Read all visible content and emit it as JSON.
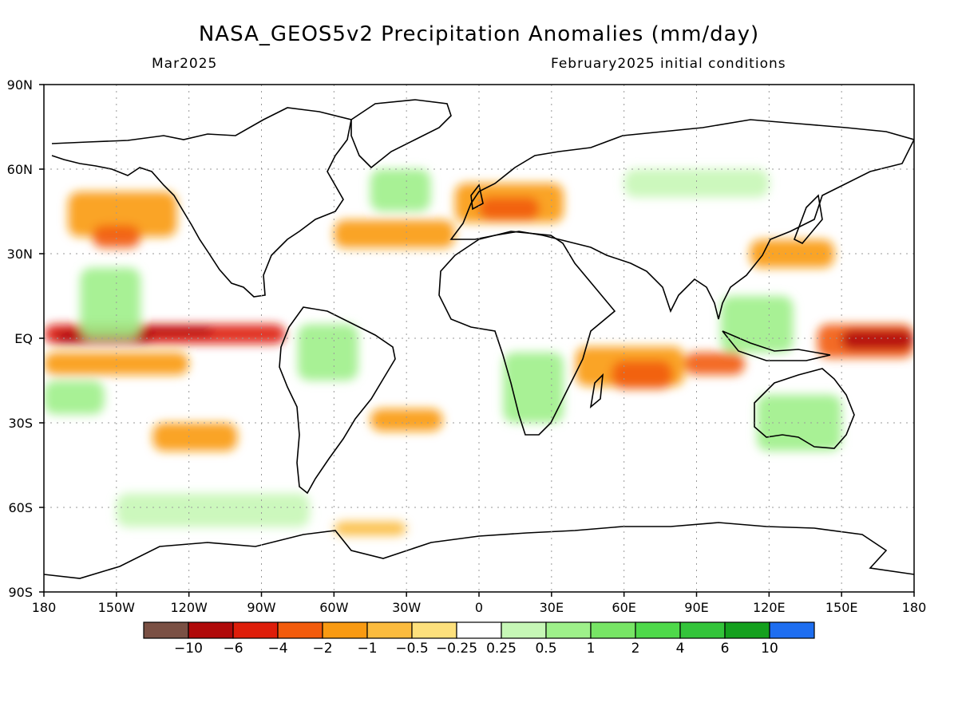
{
  "title": "NASA_GEOS5v2 Precipitation Anomalies (mm/day)",
  "subtitle_left": "Mar2025",
  "subtitle_right": "February2025 initial conditions",
  "map": {
    "lon_range": [
      -180,
      180
    ],
    "lat_range": [
      -90,
      90
    ],
    "x_ticks": [
      {
        "v": -180,
        "label": "180"
      },
      {
        "v": -150,
        "label": "150W"
      },
      {
        "v": -120,
        "label": "120W"
      },
      {
        "v": -90,
        "label": "90W"
      },
      {
        "v": -60,
        "label": "60W"
      },
      {
        "v": -30,
        "label": "30W"
      },
      {
        "v": 0,
        "label": "0"
      },
      {
        "v": 30,
        "label": "30E"
      },
      {
        "v": 60,
        "label": "60E"
      },
      {
        "v": 90,
        "label": "90E"
      },
      {
        "v": 120,
        "label": "120E"
      },
      {
        "v": 150,
        "label": "150E"
      },
      {
        "v": 180,
        "label": "180"
      }
    ],
    "y_ticks": [
      {
        "v": 90,
        "label": "90N"
      },
      {
        "v": 60,
        "label": "60N"
      },
      {
        "v": 30,
        "label": "30N"
      },
      {
        "v": 0,
        "label": "EQ"
      },
      {
        "v": -30,
        "label": "30S"
      },
      {
        "v": -60,
        "label": "60S"
      },
      {
        "v": -90,
        "label": "90S"
      }
    ],
    "gridlines": "dotted"
  },
  "colorbar": {
    "colors": [
      "#7a5044",
      "#b00a0a",
      "#de1e0a",
      "#f25b0c",
      "#f99a12",
      "#fbbb3e",
      "#fde07c",
      "#ffffff",
      "#c6f7b6",
      "#9ef08a",
      "#77e565",
      "#4ed94a",
      "#33c43a",
      "#14a01e",
      "#1e6ef0"
    ],
    "labels": [
      "-10",
      "-6",
      "-4",
      "-2",
      "-1",
      "-0.5",
      "-0.25",
      "0.25",
      "0.5",
      "1",
      "2",
      "4",
      "6",
      "10"
    ]
  },
  "anomaly_regions": [
    {
      "lon": -180,
      "lat": 5,
      "w": 100,
      "h": 7,
      "level": -4
    },
    {
      "lon": -175,
      "lat": 3,
      "w": 40,
      "h": 5,
      "level": -6
    },
    {
      "lon": -140,
      "lat": 4,
      "w": 30,
      "h": 3,
      "level": -6
    },
    {
      "lon": -180,
      "lat": -5,
      "w": 60,
      "h": 8,
      "level": -1
    },
    {
      "lon": -170,
      "lat": 52,
      "w": 45,
      "h": 16,
      "level": -1
    },
    {
      "lon": -160,
      "lat": 40,
      "w": 20,
      "h": 8,
      "level": -2
    },
    {
      "lon": -165,
      "lat": 25,
      "w": 25,
      "h": 25,
      "level": 1
    },
    {
      "lon": -180,
      "lat": -15,
      "w": 25,
      "h": 12,
      "level": 1
    },
    {
      "lon": -135,
      "lat": -30,
      "w": 35,
      "h": 10,
      "level": -1
    },
    {
      "lon": -60,
      "lat": 42,
      "w": 50,
      "h": 10,
      "level": -1
    },
    {
      "lon": -45,
      "lat": 60,
      "w": 25,
      "h": 15,
      "level": 1
    },
    {
      "lon": -10,
      "lat": 55,
      "w": 45,
      "h": 14,
      "level": -1
    },
    {
      "lon": 0,
      "lat": 50,
      "w": 25,
      "h": 8,
      "level": -2
    },
    {
      "lon": 40,
      "lat": -3,
      "w": 45,
      "h": 14,
      "level": -1
    },
    {
      "lon": 55,
      "lat": -8,
      "w": 25,
      "h": 10,
      "level": -2
    },
    {
      "lon": 85,
      "lat": -5,
      "w": 25,
      "h": 8,
      "level": -2
    },
    {
      "lon": 140,
      "lat": 5,
      "w": 40,
      "h": 12,
      "level": -2
    },
    {
      "lon": 150,
      "lat": 3,
      "w": 30,
      "h": 7,
      "level": -6
    },
    {
      "lon": 100,
      "lat": 15,
      "w": 30,
      "h": 20,
      "level": 1
    },
    {
      "lon": 112,
      "lat": 35,
      "w": 35,
      "h": 10,
      "level": -1
    },
    {
      "lon": 115,
      "lat": -20,
      "w": 35,
      "h": 20,
      "level": 1
    },
    {
      "lon": 10,
      "lat": -5,
      "w": 25,
      "h": 25,
      "level": 1
    },
    {
      "lon": -75,
      "lat": 5,
      "w": 25,
      "h": 20,
      "level": 1
    },
    {
      "lon": -45,
      "lat": -25,
      "w": 30,
      "h": 8,
      "level": -1
    },
    {
      "lon": -60,
      "lat": -65,
      "w": 30,
      "h": 5,
      "level": -0.5
    },
    {
      "lon": 60,
      "lat": 60,
      "w": 60,
      "h": 10,
      "level": 0.5
    },
    {
      "lon": -150,
      "lat": -55,
      "w": 80,
      "h": 12,
      "level": 0.5
    }
  ]
}
